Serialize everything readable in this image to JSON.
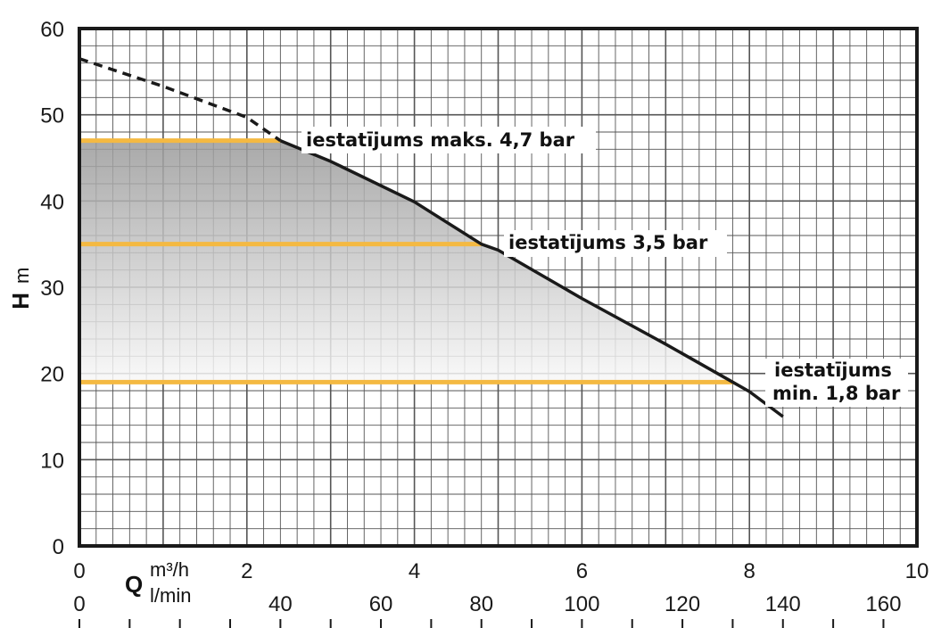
{
  "chart_data": {
    "type": "line",
    "title": "",
    "ylabel": "H",
    "ylabel_unit": "m",
    "xlabel": "Q",
    "xlabel_unit_primary": "m³/h",
    "xlabel_unit_secondary": "l/min",
    "xlim": [
      0,
      10
    ],
    "ylim": [
      0,
      60
    ],
    "x_ticks": [
      "0",
      "2",
      "4",
      "6",
      "8",
      "10"
    ],
    "x_ticks_secondary": [
      "0",
      "40",
      "60",
      "80",
      "100",
      "120",
      "140",
      "160"
    ],
    "y_ticks": [
      "0",
      "10",
      "20",
      "30",
      "40",
      "50",
      "60"
    ],
    "grid": true,
    "pump_curve": {
      "dashed": [
        [
          0,
          56.5
        ],
        [
          1,
          53.3
        ],
        [
          2,
          49.7
        ],
        [
          2.4,
          47
        ]
      ],
      "solid": [
        [
          2.4,
          47
        ],
        [
          3,
          44.6
        ],
        [
          4,
          39.9
        ],
        [
          4.8,
          35
        ],
        [
          5,
          34.3
        ],
        [
          6,
          28.7
        ],
        [
          7,
          23.4
        ],
        [
          7.8,
          19
        ],
        [
          8,
          17.9
        ],
        [
          8.4,
          15
        ]
      ]
    },
    "settings": [
      {
        "label": "iestatījums maks. 4,7 bar",
        "h": 47,
        "q_end": 2.4
      },
      {
        "label": "iestatījums 3,5 bar",
        "h": 35,
        "q_end": 4.8
      },
      {
        "label_line1": "iestatījums",
        "label_line2": "min. 1,8 bar",
        "h": 19,
        "q_end": 7.8
      }
    ],
    "colors": {
      "curve": "#1a1a1a",
      "setting_line": "#f4b942",
      "grid": "#555555",
      "fill_top": "#9a9a9a",
      "fill_bottom": "#f8f8f8"
    }
  }
}
